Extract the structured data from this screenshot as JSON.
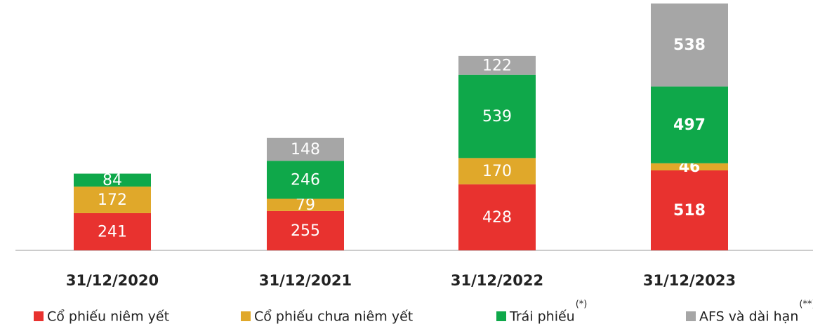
{
  "chart_data": {
    "type": "stacked_bar",
    "categories": [
      "31/12/2020",
      "31/12/2021",
      "31/12/2022",
      "31/12/2023"
    ],
    "series": [
      {
        "name": "Cổ phiếu niêm yết",
        "color": "#e8322f",
        "values": [
          241,
          255,
          428,
          518
        ]
      },
      {
        "name": "Cổ phiếu chưa niêm yết",
        "color": "#e0a82a",
        "values": [
          172,
          79,
          170,
          46
        ]
      },
      {
        "name": "Trái phiếu",
        "footnote": "(*)",
        "color": "#0fa84a",
        "values": [
          84,
          246,
          539,
          497
        ]
      },
      {
        "name": "AFS và dài hạn",
        "footnote": "(**)",
        "color": "#a6a6a6",
        "values": [
          null,
          148,
          122,
          538
        ]
      }
    ],
    "bold_value_labels": [
      false,
      false,
      false,
      true
    ],
    "legend": "bottom"
  }
}
